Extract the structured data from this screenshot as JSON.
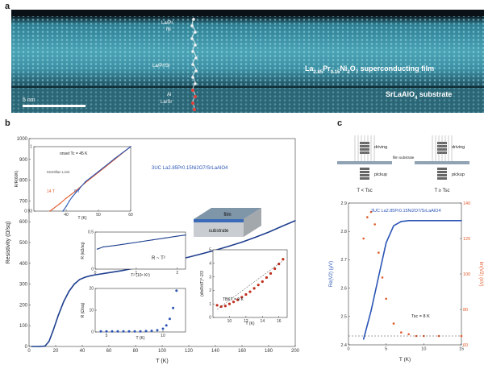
{
  "figure": {
    "panel_a": {
      "letter": "a",
      "atom_labels": [
        "La/Pr",
        "Ni",
        "La/Pr/Sr",
        "Al",
        "La/Sr"
      ],
      "film_label": "La2.85Pr0.15Ni2O7 superconducting film",
      "film_label_parts": {
        "base": "La",
        "s1": "2.85",
        "m1": "Pr",
        "s2": "0.15",
        "m2": "Ni",
        "s3": "2",
        "m3": "O",
        "s4": "7",
        "rest": " superconducting film"
      },
      "substrate_label": "SrLaAlO4 substrate",
      "substrate_parts": {
        "base": "SrLaAlO",
        "s1": "4",
        "rest": " substrate"
      },
      "scale_bar": "5 nm"
    },
    "panel_b": {
      "letter": "b",
      "sample_label": "3UC La2.85Pr0.15Ni2O7/SrLaAlO4",
      "inset_tc": {
        "onset": "onset Tc = 45 K",
        "mcmillan": "McMillan Limit",
        "curve_14t": "14 T",
        "curve_0t": "0 T",
        "ylabel": "R/R(60K)",
        "xlabel": "T (K)"
      },
      "inset_t2": {
        "ylabel": "R (kΩ/sq)",
        "xlabel": "T² (10⁴ K²)",
        "relation": "R ~ T²"
      },
      "inset_lowt": {
        "ylabel": "R (Ω/sq)",
        "xlabel": "T (K)"
      },
      "inset_bkt": {
        "ylabel": "(dlnR/dT)^-2/3",
        "xlabel": "T (K)",
        "tbkt": "TBKT = 9 K"
      },
      "block_labels": {
        "film": "film",
        "substrate": "substrate"
      }
    },
    "panel_c": {
      "letter": "c",
      "schematic": {
        "driving": "driving",
        "pickup": "pickup",
        "film_substrate": "film substrate",
        "left_cond": "T < Tsc",
        "right_cond": "T ≥ Tsc"
      },
      "sample_label": "3UC La2.85Pr0.15Ni2O7/SrLaAlO4",
      "tsc_annotation": "Tsc = 8 K"
    }
  },
  "chart_data": [
    {
      "type": "line",
      "panel": "b-main",
      "xlabel": "T (K)",
      "ylabel": "Resistivity (Ω/sq)",
      "xlim": [
        0,
        200
      ],
      "ylim": [
        0,
        1000
      ],
      "xticks": [
        0,
        20,
        40,
        60,
        80,
        100,
        120,
        140,
        160,
        180,
        200
      ],
      "yticks": [
        0,
        100,
        200,
        300,
        400,
        500,
        600,
        700,
        800,
        900,
        1000
      ],
      "series": [
        {
          "color": "#1f3f8f",
          "x": [
            2,
            8,
            12,
            15,
            18,
            22,
            26,
            30,
            34,
            38,
            42,
            46,
            50,
            60,
            70,
            80,
            90,
            100,
            110,
            120,
            130,
            140,
            150,
            160,
            170,
            180,
            190,
            200
          ],
          "y": [
            0,
            0,
            2,
            25,
            75,
            150,
            215,
            265,
            300,
            322,
            333,
            340,
            345,
            355,
            365,
            378,
            390,
            402,
            416,
            430,
            446,
            463,
            482,
            502,
            525,
            550,
            578,
            605
          ]
        }
      ]
    },
    {
      "type": "line",
      "panel": "b-inset-tc",
      "xlim": [
        30,
        60
      ],
      "ylim": [
        0.93,
        1.0
      ],
      "xticks": [
        40,
        50,
        60
      ],
      "yticks": [
        0.93,
        1.0
      ],
      "series": [
        {
          "name": "14 T",
          "color": "#e05a2a",
          "x": [
            35,
            38,
            40,
            43,
            46,
            50,
            55,
            60
          ],
          "y": [
            0.93,
            0.938,
            0.944,
            0.952,
            0.961,
            0.972,
            0.986,
            1.0
          ]
        },
        {
          "name": "0 T",
          "color": "#2b55b5",
          "x": [
            39,
            40,
            41,
            42,
            44,
            46,
            50,
            55,
            60
          ],
          "y": [
            0.93,
            0.935,
            0.941,
            0.946,
            0.954,
            0.962,
            0.973,
            0.987,
            1.0
          ]
        }
      ]
    },
    {
      "type": "line",
      "panel": "b-inset-t2",
      "xlim": [
        0,
        2.2
      ],
      "ylim": [
        0,
        0.5
      ],
      "xticks": [
        0,
        1,
        2
      ],
      "yticks": [
        0,
        0.5
      ],
      "series": [
        {
          "color": "#1f3f8f",
          "x": [
            0.05,
            0.2,
            0.5,
            0.8,
            1.1,
            1.4,
            1.7,
            2.0,
            2.2
          ],
          "y": [
            0.27,
            0.3,
            0.32,
            0.345,
            0.37,
            0.395,
            0.42,
            0.445,
            0.46
          ]
        }
      ]
    },
    {
      "type": "scatter",
      "panel": "b-inset-lowt",
      "xlim": [
        4,
        12
      ],
      "ylim": [
        0,
        20
      ],
      "xticks": [
        5,
        10
      ],
      "yticks": [
        0,
        10,
        20
      ],
      "series": [
        {
          "color": "#2b55b5",
          "x": [
            4.5,
            5,
            5.5,
            6,
            6.5,
            7,
            7.5,
            8,
            8.5,
            9,
            9.5,
            10,
            10.3,
            10.6,
            10.9,
            11.2
          ],
          "y": [
            0.3,
            0.3,
            0.3,
            0.3,
            0.3,
            0.3,
            0.3,
            0.3,
            0.4,
            0.5,
            0.8,
            1.5,
            3,
            6,
            11,
            19
          ]
        }
      ]
    },
    {
      "type": "scatter",
      "panel": "b-inset-bkt",
      "xlim": [
        8,
        17
      ],
      "ylim": [
        0,
        5
      ],
      "xticks": [
        10,
        12,
        14,
        16
      ],
      "yticks": [
        0,
        1,
        2,
        3,
        4,
        5
      ],
      "series": [
        {
          "color": "#c0301f",
          "x": [
            8.5,
            9,
            9.5,
            10,
            10.5,
            11,
            11.5,
            12,
            12.5,
            13,
            13.5,
            14,
            14.5,
            15,
            15.5,
            16,
            16.5
          ],
          "y": [
            0.9,
            0.8,
            0.85,
            1.0,
            1.15,
            1.3,
            1.5,
            1.7,
            1.9,
            2.15,
            2.4,
            2.65,
            2.95,
            3.25,
            3.6,
            3.95,
            4.3
          ]
        }
      ]
    },
    {
      "type": "line",
      "panel": "c-mutual-inductance",
      "xlabel": "T (K)",
      "ylabel": "Re(V2) (μV)",
      "ylabel_right": "Im(V2) (nV)",
      "xlim": [
        0,
        15
      ],
      "ylim": [
        2.4,
        2.9
      ],
      "ylim_right": [
        60,
        140
      ],
      "xticks": [
        0,
        5,
        10,
        15
      ],
      "yticks": [
        2.4,
        2.5,
        2.6,
        2.7,
        2.8,
        2.9
      ],
      "yticks_right": [
        60,
        80,
        100,
        120,
        140
      ],
      "series": [
        {
          "name": "Re(V2)",
          "axis": "left",
          "color": "#2b55b5",
          "x": [
            2,
            3,
            4,
            5,
            6,
            7,
            8,
            10,
            12,
            15
          ],
          "y": [
            2.42,
            2.52,
            2.64,
            2.76,
            2.82,
            2.835,
            2.838,
            2.838,
            2.838,
            2.838
          ]
        },
        {
          "name": "Im(V2)",
          "axis": "right",
          "color": "#e05a2a",
          "x": [
            2,
            2.5,
            3,
            3.5,
            4,
            4.5,
            5,
            6,
            7,
            8,
            9,
            10,
            12,
            15
          ],
          "y": [
            120,
            132,
            135,
            128,
            112,
            98,
            86,
            72,
            67,
            66,
            65,
            65,
            65,
            65
          ]
        }
      ]
    }
  ]
}
